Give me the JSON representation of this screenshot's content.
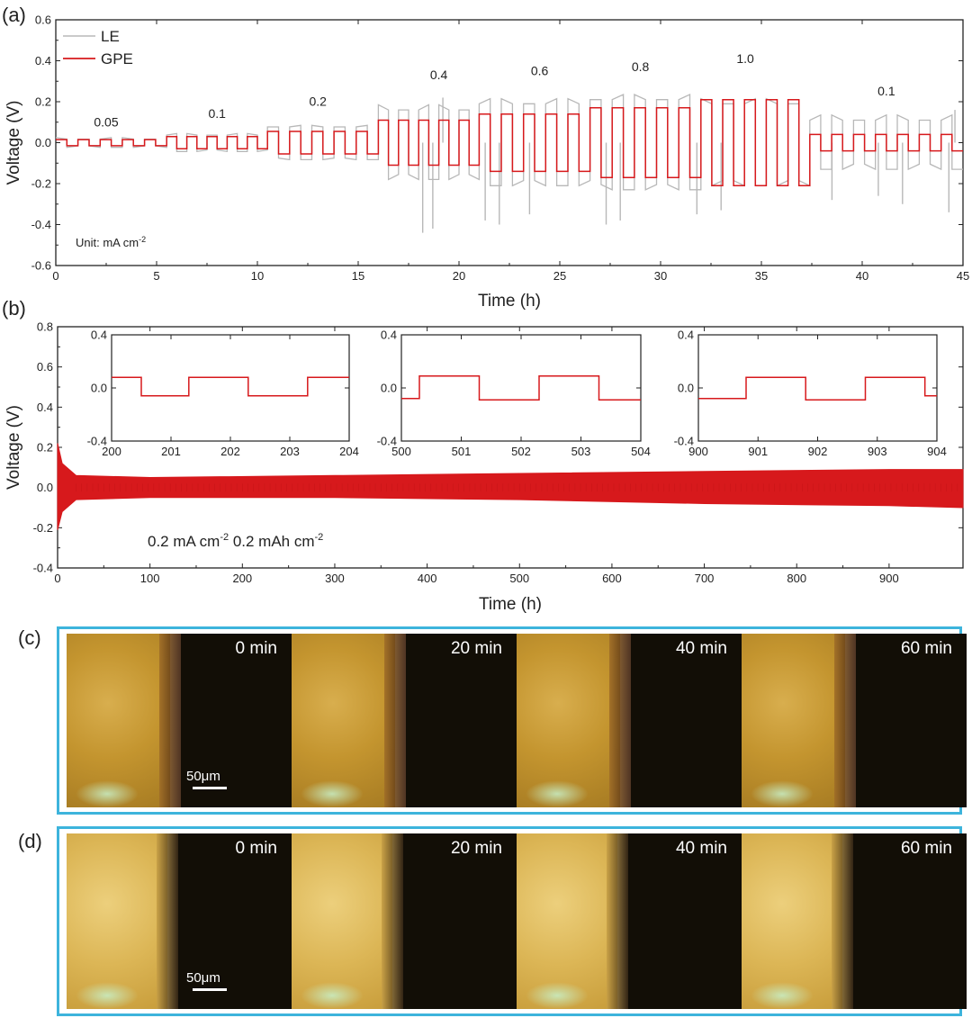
{
  "panels": {
    "a": "(a)",
    "b": "(b)",
    "c": "(c)",
    "d": "(d)"
  },
  "colors": {
    "le": "#b8b8b8",
    "gpe": "#d7191c",
    "frame": "#3db4dc",
    "lithium": "#c89a3a",
    "dark": "#120e06"
  },
  "chart_data": [
    {
      "id": "a",
      "type": "line",
      "xlabel": "Time (h)",
      "ylabel": "Voltage (V)",
      "xlim": [
        0,
        45
      ],
      "ylim": [
        -0.6,
        0.6
      ],
      "xticks": [
        0,
        5,
        10,
        15,
        20,
        25,
        30,
        35,
        40,
        45
      ],
      "yticks": [
        -0.6,
        -0.4,
        -0.2,
        0.0,
        0.2,
        0.4,
        0.6
      ],
      "ytick_labels": [
        "-0.6",
        "-0.4",
        "-0.2",
        "0.0",
        "0.2",
        "0.4",
        "0.6"
      ],
      "legend": {
        "placement": "top-left",
        "entries": [
          "LE",
          "GPE"
        ]
      },
      "annotation": "Unit: mA cm",
      "annotation_sup": "-2",
      "rate_labels": [
        {
          "t": 2.5,
          "v": 0.08,
          "text": "0.05"
        },
        {
          "t": 8,
          "v": 0.12,
          "text": "0.1"
        },
        {
          "t": 13,
          "v": 0.18,
          "text": "0.2"
        },
        {
          "t": 19,
          "v": 0.31,
          "text": "0.4"
        },
        {
          "t": 24,
          "v": 0.33,
          "text": "0.6"
        },
        {
          "t": 29,
          "v": 0.35,
          "text": "0.8"
        },
        {
          "t": 34.2,
          "v": 0.39,
          "text": "1.0"
        },
        {
          "t": 41.2,
          "v": 0.23,
          "text": "0.1"
        }
      ],
      "gpe_segments": [
        {
          "t0": 0,
          "t1": 5.5,
          "amp": 0.015,
          "cycles": 5
        },
        {
          "t0": 5.5,
          "t1": 10.5,
          "amp": 0.03,
          "cycles": 5
        },
        {
          "t0": 10.5,
          "t1": 16,
          "amp": 0.055,
          "cycles": 5
        },
        {
          "t0": 16,
          "t1": 21,
          "amp": 0.11,
          "cycles": 5
        },
        {
          "t0": 21,
          "t1": 26.5,
          "amp": 0.14,
          "cycles": 5
        },
        {
          "t0": 26.5,
          "t1": 32,
          "amp": 0.17,
          "cycles": 5
        },
        {
          "t0": 32,
          "t1": 37.4,
          "amp": 0.21,
          "cycles": 5
        },
        {
          "t0": 37.4,
          "t1": 45,
          "amp": 0.04,
          "cycles": 7
        }
      ],
      "le_segments": [
        {
          "t0": 0,
          "t1": 5.5,
          "amp": 0.02,
          "cycles": 5
        },
        {
          "t0": 5.5,
          "t1": 10.5,
          "amp": 0.04,
          "cycles": 5
        },
        {
          "t0": 10.5,
          "t1": 16,
          "amp": 0.08,
          "cycles": 5
        },
        {
          "t0": 16,
          "t1": 21,
          "amp": 0.17,
          "cycles": 5
        },
        {
          "t0": 21,
          "t1": 26.5,
          "amp": 0.2,
          "cycles": 5
        },
        {
          "t0": 26.5,
          "t1": 32,
          "amp": 0.22,
          "cycles": 5
        },
        {
          "t0": 32,
          "t1": 37.4,
          "amp": 0.2,
          "cycles": 5
        },
        {
          "t0": 37.4,
          "t1": 45,
          "amp": 0.12,
          "cycles": 7
        }
      ],
      "le_spikes": [
        {
          "t": 18.2,
          "v": -0.44
        },
        {
          "t": 18.7,
          "v": -0.42
        },
        {
          "t": 19.2,
          "v": 0.22
        },
        {
          "t": 21.3,
          "v": -0.38
        },
        {
          "t": 22.0,
          "v": -0.4
        },
        {
          "t": 23.5,
          "v": -0.35
        },
        {
          "t": 27.3,
          "v": -0.4
        },
        {
          "t": 28.0,
          "v": -0.38
        },
        {
          "t": 31.8,
          "v": -0.35
        },
        {
          "t": 33.0,
          "v": -0.33
        },
        {
          "t": 38.5,
          "v": -0.28
        },
        {
          "t": 40.8,
          "v": -0.26
        },
        {
          "t": 42.0,
          "v": -0.3
        },
        {
          "t": 44.3,
          "v": -0.34
        },
        {
          "t": 44.6,
          "v": 0.16
        }
      ]
    },
    {
      "id": "b",
      "type": "line",
      "xlabel": "Time (h)",
      "ylabel": "Voltage (V)",
      "xlim": [
        0,
        980
      ],
      "ylim": [
        -0.4,
        0.8
      ],
      "xticks": [
        0,
        100,
        200,
        300,
        400,
        500,
        600,
        700,
        800,
        900
      ],
      "yticks": [
        -0.4,
        -0.2,
        0.0,
        0.2,
        0.4,
        0.6,
        0.8
      ],
      "ytick_labels": [
        "-0.4",
        "-0.2",
        "0.0",
        "0.2",
        "0.4",
        "0.6",
        "0.8"
      ],
      "annotation_parts": [
        "0.2 mA cm",
        "-2",
        "  0.2 mAh cm",
        "-2"
      ],
      "envelope": [
        {
          "t": 0,
          "upper": 0.22,
          "lower": -0.21
        },
        {
          "t": 5,
          "upper": 0.12,
          "lower": -0.12
        },
        {
          "t": 20,
          "upper": 0.06,
          "lower": -0.06
        },
        {
          "t": 100,
          "upper": 0.05,
          "lower": -0.05
        },
        {
          "t": 300,
          "upper": 0.06,
          "lower": -0.05
        },
        {
          "t": 500,
          "upper": 0.07,
          "lower": -0.06
        },
        {
          "t": 700,
          "upper": 0.08,
          "lower": -0.08
        },
        {
          "t": 900,
          "upper": 0.09,
          "lower": -0.09
        },
        {
          "t": 980,
          "upper": 0.09,
          "lower": -0.1
        }
      ],
      "insets": [
        {
          "xlim": [
            200,
            204
          ],
          "ylim": [
            -0.4,
            0.4
          ],
          "xticks": [
            200,
            201,
            202,
            203,
            204
          ],
          "yticks": [
            -0.4,
            0.0,
            0.4
          ],
          "ytick_labels": [
            "-0.4",
            "0.0",
            "0.4"
          ],
          "points": [
            [
              200.0,
              0.08
            ],
            [
              200.5,
              0.08
            ],
            [
              200.5,
              -0.06
            ],
            [
              201.3,
              -0.06
            ],
            [
              201.3,
              0.08
            ],
            [
              202.3,
              0.08
            ],
            [
              202.3,
              -0.06
            ],
            [
              203.3,
              -0.06
            ],
            [
              203.3,
              0.08
            ],
            [
              204.0,
              0.08
            ]
          ]
        },
        {
          "xlim": [
            500,
            504
          ],
          "ylim": [
            -0.4,
            0.4
          ],
          "xticks": [
            500,
            501,
            502,
            503,
            504
          ],
          "yticks": [
            -0.4,
            0.0,
            0.4
          ],
          "ytick_labels": [
            "-0.4",
            "0.0",
            "0.4"
          ],
          "points": [
            [
              500.0,
              -0.08
            ],
            [
              500.3,
              -0.08
            ],
            [
              500.3,
              0.09
            ],
            [
              501.3,
              0.09
            ],
            [
              501.3,
              -0.09
            ],
            [
              502.3,
              -0.09
            ],
            [
              502.3,
              0.09
            ],
            [
              503.3,
              0.09
            ],
            [
              503.3,
              -0.09
            ],
            [
              504.0,
              -0.09
            ]
          ]
        },
        {
          "xlim": [
            900,
            904
          ],
          "ylim": [
            -0.4,
            0.4
          ],
          "xticks": [
            900,
            901,
            902,
            903,
            904
          ],
          "yticks": [
            -0.4,
            0.0,
            0.4
          ],
          "ytick_labels": [
            "-0.4",
            "0.0",
            "0.4"
          ],
          "points": [
            [
              900.0,
              -0.08
            ],
            [
              900.8,
              -0.08
            ],
            [
              900.8,
              0.08
            ],
            [
              901.8,
              0.08
            ],
            [
              901.8,
              -0.09
            ],
            [
              902.8,
              -0.09
            ],
            [
              902.8,
              0.08
            ],
            [
              903.8,
              0.08
            ],
            [
              903.8,
              -0.06
            ],
            [
              904.0,
              -0.06
            ]
          ]
        }
      ]
    }
  ],
  "images": {
    "scale_label": "50μm",
    "c_times": [
      "0 min",
      "20 min",
      "40 min",
      "60 min"
    ],
    "d_times": [
      "0 min",
      "20 min",
      "40 min",
      "60 min"
    ]
  }
}
